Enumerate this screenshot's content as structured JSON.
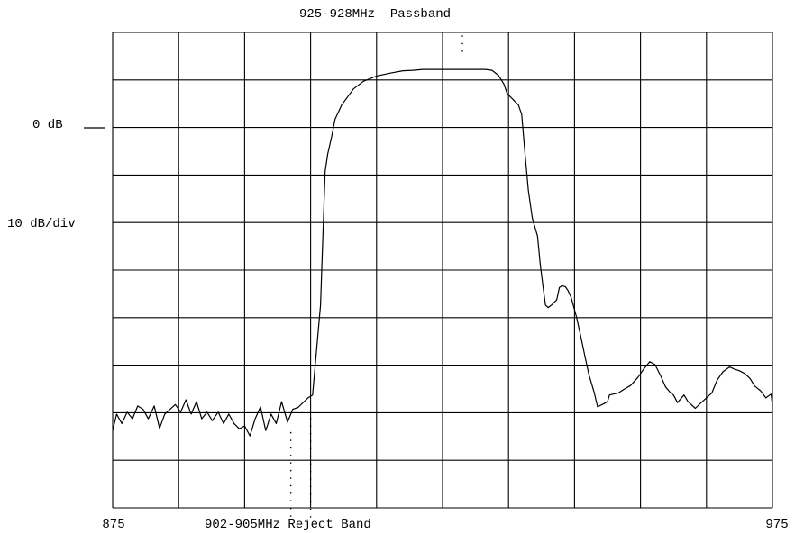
{
  "colors": {
    "trace": "#000000",
    "grid": "#000000",
    "background": "#ffffff"
  },
  "chart_data": {
    "type": "line",
    "title": "925-928MHz  Passband",
    "x_range": [
      875,
      975
    ],
    "x_ticks": [
      "875",
      "975"
    ],
    "xlabel": "902-905MHz Reject Band",
    "reference_label": "0 dB",
    "scale_label": "10 dB/div",
    "grid": true,
    "grid_divisions": {
      "x": 10,
      "y": 10
    },
    "y_units": "dB",
    "y_reference_db": 0,
    "y_scale_db_per_div": 10,
    "markers": [
      {
        "name": "reject-band-start",
        "x": 902,
        "range_db": [
          -64,
          -82
        ]
      },
      {
        "name": "reject-band-end",
        "x": 905,
        "range_db": [
          -61,
          -82
        ]
      },
      {
        "name": "passband-center",
        "x": 928,
        "range_db": [
          16,
          20
        ]
      }
    ],
    "series": [
      {
        "points": [
          [
            875.0,
            -63.7
          ],
          [
            875.6,
            -60.2
          ],
          [
            876.4,
            -62.2
          ],
          [
            877.2,
            -59.8
          ],
          [
            878.0,
            -61.2
          ],
          [
            878.8,
            -58.5
          ],
          [
            879.6,
            -59.2
          ],
          [
            880.4,
            -61.2
          ],
          [
            881.3,
            -58.5
          ],
          [
            882.1,
            -63.2
          ],
          [
            882.9,
            -60.2
          ],
          [
            883.7,
            -59.2
          ],
          [
            884.5,
            -58.2
          ],
          [
            885.3,
            -59.8
          ],
          [
            886.1,
            -57.2
          ],
          [
            886.9,
            -60.2
          ],
          [
            887.7,
            -57.6
          ],
          [
            888.5,
            -61.2
          ],
          [
            889.3,
            -59.8
          ],
          [
            890.1,
            -61.6
          ],
          [
            891.0,
            -59.8
          ],
          [
            891.8,
            -62.2
          ],
          [
            892.6,
            -60.2
          ],
          [
            893.4,
            -62.2
          ],
          [
            894.2,
            -63.3
          ],
          [
            895.0,
            -62.7
          ],
          [
            895.8,
            -64.8
          ],
          [
            896.6,
            -61.2
          ],
          [
            897.4,
            -58.7
          ],
          [
            898.2,
            -63.7
          ],
          [
            899.0,
            -60.2
          ],
          [
            899.8,
            -62.2
          ],
          [
            900.6,
            -57.6
          ],
          [
            901.5,
            -61.9
          ],
          [
            902.3,
            -59.2
          ],
          [
            903.1,
            -58.8
          ],
          [
            904.6,
            -56.8
          ],
          [
            905.3,
            -56.2
          ],
          [
            906.5,
            -37.3
          ],
          [
            907.2,
            -9.2
          ],
          [
            907.6,
            -5.5
          ],
          [
            908.2,
            -1.8
          ],
          [
            908.7,
            1.8
          ],
          [
            909.7,
            4.8
          ],
          [
            911.5,
            8.2
          ],
          [
            913.0,
            9.8
          ],
          [
            915.0,
            10.9
          ],
          [
            917.0,
            11.5
          ],
          [
            919.0,
            12.0
          ],
          [
            920.5,
            12.1
          ],
          [
            922.0,
            12.3
          ],
          [
            924.0,
            12.3
          ],
          [
            926.5,
            12.3
          ],
          [
            928.0,
            12.3
          ],
          [
            930.0,
            12.3
          ],
          [
            931.5,
            12.3
          ],
          [
            932.5,
            12.1
          ],
          [
            933.5,
            11.0
          ],
          [
            934.3,
            9.2
          ],
          [
            934.8,
            7.2
          ],
          [
            935.3,
            6.5
          ],
          [
            935.8,
            5.8
          ],
          [
            936.5,
            4.8
          ],
          [
            937.0,
            2.8
          ],
          [
            937.5,
            -5.5
          ],
          [
            938.0,
            -13.2
          ],
          [
            938.6,
            -19.0
          ],
          [
            939.4,
            -22.8
          ],
          [
            939.8,
            -28.6
          ],
          [
            940.3,
            -34.2
          ],
          [
            940.6,
            -37.3
          ],
          [
            941.0,
            -37.8
          ],
          [
            941.5,
            -37.3
          ],
          [
            942.3,
            -36.2
          ],
          [
            942.7,
            -33.6
          ],
          [
            943.1,
            -33.2
          ],
          [
            943.6,
            -33.4
          ],
          [
            944.0,
            -34.2
          ],
          [
            944.5,
            -35.7
          ],
          [
            945.3,
            -39.8
          ],
          [
            946.0,
            -44.2
          ],
          [
            946.6,
            -48.2
          ],
          [
            947.2,
            -52.0
          ],
          [
            948.0,
            -55.8
          ],
          [
            948.5,
            -58.7
          ],
          [
            949.5,
            -58.0
          ],
          [
            950.0,
            -57.6
          ],
          [
            950.3,
            -56.2
          ],
          [
            951.6,
            -55.8
          ],
          [
            952.5,
            -55.0
          ],
          [
            953.5,
            -54.2
          ],
          [
            954.6,
            -52.5
          ],
          [
            955.5,
            -50.7
          ],
          [
            956.4,
            -49.2
          ],
          [
            957.2,
            -49.8
          ],
          [
            958.0,
            -52.0
          ],
          [
            958.8,
            -54.5
          ],
          [
            959.6,
            -55.8
          ],
          [
            960.0,
            -56.2
          ],
          [
            960.6,
            -57.8
          ],
          [
            961.6,
            -56.2
          ],
          [
            962.2,
            -57.6
          ],
          [
            963.3,
            -59.0
          ],
          [
            964.2,
            -57.8
          ],
          [
            965.0,
            -56.8
          ],
          [
            965.8,
            -55.8
          ],
          [
            966.6,
            -53.1
          ],
          [
            967.5,
            -51.3
          ],
          [
            968.5,
            -50.3
          ],
          [
            969.3,
            -50.8
          ],
          [
            970.0,
            -51.1
          ],
          [
            970.8,
            -51.7
          ],
          [
            971.6,
            -52.7
          ],
          [
            972.3,
            -54.3
          ],
          [
            973.2,
            -55.3
          ],
          [
            974.0,
            -56.8
          ],
          [
            974.8,
            -56.0
          ],
          [
            975.0,
            -58.5
          ]
        ]
      }
    ]
  }
}
